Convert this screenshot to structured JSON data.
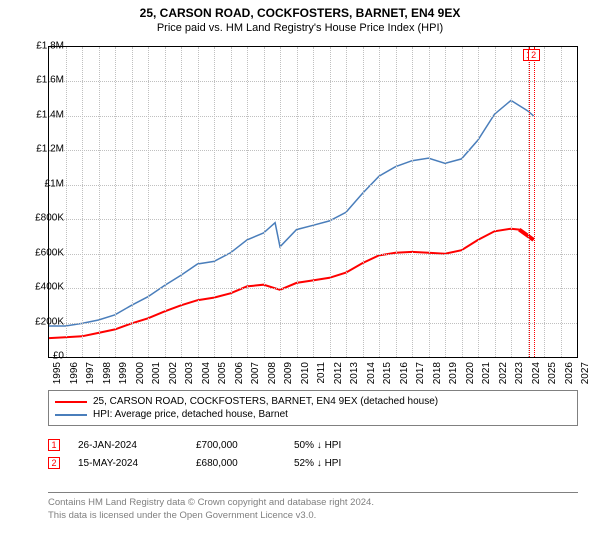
{
  "title": "25, CARSON ROAD, COCKFOSTERS, BARNET, EN4 9EX",
  "subtitle": "Price paid vs. HM Land Registry's House Price Index (HPI)",
  "chart": {
    "type": "line",
    "background_color": "#ffffff",
    "grid_color": "#c0c0c0",
    "border_color": "#000000",
    "xlim": [
      1995,
      2027
    ],
    "ylim": [
      0,
      1800000
    ],
    "ytick_step": 200000,
    "ytick_labels": [
      "£0",
      "£200K",
      "£400K",
      "£600K",
      "£800K",
      "£1M",
      "£1.2M",
      "£1.4M",
      "£1.6M",
      "£1.8M"
    ],
    "xtick_step": 1,
    "xtick_labels": [
      "1995",
      "1996",
      "1997",
      "1998",
      "1999",
      "2000",
      "2001",
      "2002",
      "2003",
      "2004",
      "2005",
      "2006",
      "2007",
      "2008",
      "2009",
      "2010",
      "2011",
      "2012",
      "2013",
      "2014",
      "2015",
      "2016",
      "2017",
      "2018",
      "2019",
      "2020",
      "2021",
      "2022",
      "2023",
      "2024",
      "2025",
      "2026",
      "2027"
    ],
    "series": [
      {
        "name": "price_paid",
        "color": "#ff0000",
        "width": 2,
        "data": [
          [
            1995,
            110000
          ],
          [
            1996,
            115000
          ],
          [
            1997,
            120000
          ],
          [
            1998,
            140000
          ],
          [
            1999,
            160000
          ],
          [
            2000,
            195000
          ],
          [
            2001,
            225000
          ],
          [
            2002,
            265000
          ],
          [
            2003,
            300000
          ],
          [
            2004,
            330000
          ],
          [
            2005,
            345000
          ],
          [
            2006,
            370000
          ],
          [
            2007,
            410000
          ],
          [
            2008,
            420000
          ],
          [
            2009,
            390000
          ],
          [
            2010,
            430000
          ],
          [
            2011,
            445000
          ],
          [
            2012,
            460000
          ],
          [
            2013,
            490000
          ],
          [
            2014,
            545000
          ],
          [
            2015,
            590000
          ],
          [
            2016,
            605000
          ],
          [
            2017,
            610000
          ],
          [
            2018,
            605000
          ],
          [
            2019,
            600000
          ],
          [
            2020,
            620000
          ],
          [
            2021,
            680000
          ],
          [
            2022,
            730000
          ],
          [
            2023,
            745000
          ],
          [
            2023.5,
            740000
          ],
          [
            2024.07,
            700000
          ],
          [
            2024.37,
            680000
          ]
        ]
      },
      {
        "name": "hpi",
        "color": "#4a7ebb",
        "width": 1.5,
        "data": [
          [
            1995,
            180000
          ],
          [
            1996,
            180000
          ],
          [
            1997,
            195000
          ],
          [
            1998,
            215000
          ],
          [
            1999,
            245000
          ],
          [
            2000,
            300000
          ],
          [
            2001,
            350000
          ],
          [
            2002,
            415000
          ],
          [
            2003,
            475000
          ],
          [
            2004,
            540000
          ],
          [
            2005,
            555000
          ],
          [
            2006,
            605000
          ],
          [
            2007,
            680000
          ],
          [
            2008,
            720000
          ],
          [
            2008.7,
            780000
          ],
          [
            2009,
            640000
          ],
          [
            2010,
            740000
          ],
          [
            2011,
            765000
          ],
          [
            2012,
            790000
          ],
          [
            2013,
            840000
          ],
          [
            2014,
            950000
          ],
          [
            2015,
            1050000
          ],
          [
            2016,
            1105000
          ],
          [
            2017,
            1140000
          ],
          [
            2018,
            1155000
          ],
          [
            2019,
            1125000
          ],
          [
            2020,
            1150000
          ],
          [
            2021,
            1260000
          ],
          [
            2022,
            1410000
          ],
          [
            2023,
            1490000
          ],
          [
            2023.5,
            1460000
          ],
          [
            2024.0,
            1430000
          ],
          [
            2024.37,
            1400000
          ]
        ]
      }
    ],
    "markers": [
      {
        "n": "1",
        "x": 2024.07
      },
      {
        "n": "2",
        "x": 2024.37
      }
    ]
  },
  "legend": {
    "border_color": "#808080",
    "items": [
      {
        "color": "#ff0000",
        "label": "25, CARSON ROAD, COCKFOSTERS, BARNET, EN4 9EX (detached house)"
      },
      {
        "color": "#4a7ebb",
        "label": "HPI: Average price, detached house, Barnet"
      }
    ]
  },
  "transactions": [
    {
      "n": "1",
      "date": "26-JAN-2024",
      "price": "£700,000",
      "hpi": "50% ↓ HPI"
    },
    {
      "n": "2",
      "date": "15-MAY-2024",
      "price": "£680,000",
      "hpi": "52% ↓ HPI"
    }
  ],
  "footer": {
    "line1": "Contains HM Land Registry data © Crown copyright and database right 2024.",
    "line2": "This data is licensed under the Open Government Licence v3.0."
  },
  "footer_color": "#808080"
}
